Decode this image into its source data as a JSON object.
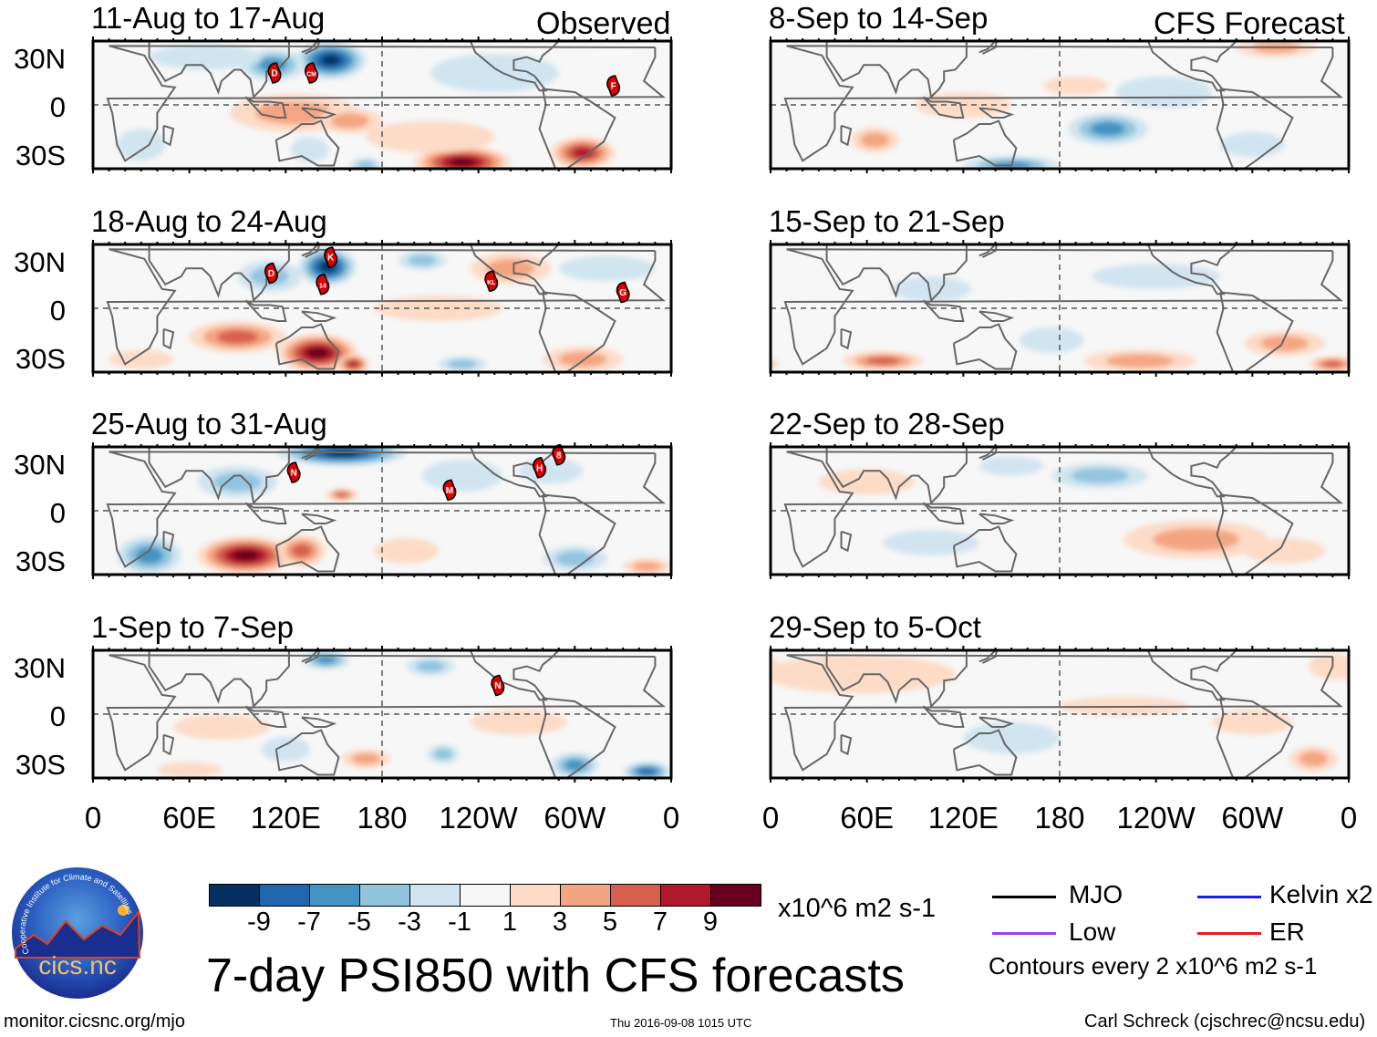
{
  "title": "7-day PSI850 with CFS forecasts",
  "headers": {
    "observed": "Observed",
    "forecast": "CFS Forecast"
  },
  "lat_labels": [
    "30N",
    "0",
    "30S"
  ],
  "lon_labels": [
    "0",
    "60E",
    "120E",
    "180",
    "120W",
    "60W",
    "0"
  ],
  "colorbar": {
    "labels": [
      "-9",
      "-7",
      "-5",
      "-3",
      "-1",
      "1",
      "3",
      "5",
      "7",
      "9"
    ],
    "colors": [
      "#053061",
      "#2166ac",
      "#4393c3",
      "#92c5de",
      "#d1e5f0",
      "#f7f7f7",
      "#fddbc7",
      "#f4a582",
      "#d6604d",
      "#b2182b",
      "#67001f"
    ],
    "units": "x10^6 m2 s-1"
  },
  "legend": {
    "items": [
      {
        "label": "MJO",
        "color": "#000000"
      },
      {
        "label": "Kelvin x2",
        "color": "#1a1aff"
      },
      {
        "label": "Low",
        "color": "#a040e0"
      },
      {
        "label": "ER",
        "color": "#e02020"
      }
    ],
    "contours_note": "Contours every 2 x10^6 m2 s-1"
  },
  "footer": {
    "url": "monitor.cicsnc.org/mjo",
    "timestamp": "Thu 2016-09-08 1015 UTC",
    "author": "Carl Schreck (cjschrec@ncsu.edu)"
  },
  "logo": {
    "name": "cics.nc",
    "ring": "Cooperative Institute for Climate and Satellites"
  },
  "chart_data": {
    "type": "heatmap",
    "variable": "PSI850 anomaly",
    "units": "x10^6 m2 s-1",
    "lat_range": [
      -40,
      40
    ],
    "lon_range": [
      0,
      360
    ],
    "panels": [
      {
        "title": "11-Aug to 17-Aug",
        "kind": "observed",
        "anomalies": [
          {
            "lon": 148,
            "lat": 28,
            "v": -11,
            "rx": 22,
            "ry": 12
          },
          {
            "lon": 112,
            "lat": 25,
            "v": -6,
            "rx": 20,
            "ry": 10
          },
          {
            "lon": 70,
            "lat": 30,
            "v": -3,
            "rx": 35,
            "ry": 8
          },
          {
            "lon": 125,
            "lat": -5,
            "v": 4,
            "rx": 40,
            "ry": 12
          },
          {
            "lon": 160,
            "lat": -10,
            "v": 4,
            "rx": 20,
            "ry": 8
          },
          {
            "lon": 230,
            "lat": -36,
            "v": 10,
            "rx": 30,
            "ry": 10
          },
          {
            "lon": 305,
            "lat": -30,
            "v": 8,
            "rx": 20,
            "ry": 10
          },
          {
            "lon": 210,
            "lat": -20,
            "v": 3,
            "rx": 40,
            "ry": 10
          },
          {
            "lon": 135,
            "lat": -28,
            "v": -3,
            "rx": 12,
            "ry": 8
          },
          {
            "lon": 170,
            "lat": -38,
            "v": -5,
            "rx": 10,
            "ry": 5
          },
          {
            "lon": 250,
            "lat": 20,
            "v": -2,
            "rx": 40,
            "ry": 12
          },
          {
            "lon": 30,
            "lat": -25,
            "v": -3,
            "rx": 15,
            "ry": 10
          }
        ],
        "storms": [
          {
            "lon": 113,
            "lat": 20,
            "label": "D"
          },
          {
            "lon": 136,
            "lat": 20,
            "label": "CM"
          },
          {
            "lon": 324,
            "lat": 12,
            "label": "F"
          }
        ]
      },
      {
        "title": "18-Aug to 24-Aug",
        "kind": "observed",
        "anomalies": [
          {
            "lon": 146,
            "lat": 26,
            "v": -11,
            "rx": 18,
            "ry": 12
          },
          {
            "lon": 110,
            "lat": 20,
            "v": -5,
            "rx": 20,
            "ry": 10
          },
          {
            "lon": 205,
            "lat": 30,
            "v": -5,
            "rx": 15,
            "ry": 6
          },
          {
            "lon": 140,
            "lat": -28,
            "v": 10,
            "rx": 25,
            "ry": 12
          },
          {
            "lon": 90,
            "lat": -18,
            "v": 6,
            "rx": 30,
            "ry": 10
          },
          {
            "lon": 162,
            "lat": -35,
            "v": 9,
            "rx": 10,
            "ry": 6
          },
          {
            "lon": 260,
            "lat": 25,
            "v": 4,
            "rx": 25,
            "ry": 10
          },
          {
            "lon": 30,
            "lat": -32,
            "v": 3,
            "rx": 20,
            "ry": 6
          },
          {
            "lon": 305,
            "lat": -32,
            "v": 5,
            "rx": 25,
            "ry": 8
          },
          {
            "lon": 230,
            "lat": -35,
            "v": -4,
            "rx": 15,
            "ry": 5
          },
          {
            "lon": 215,
            "lat": 0,
            "v": 2,
            "rx": 40,
            "ry": 8
          },
          {
            "lon": 320,
            "lat": 25,
            "v": -2,
            "rx": 30,
            "ry": 8
          }
        ],
        "storms": [
          {
            "lon": 111,
            "lat": 22,
            "label": "D"
          },
          {
            "lon": 148,
            "lat": 32,
            "label": "K"
          },
          {
            "lon": 143,
            "lat": 15,
            "label": "14"
          },
          {
            "lon": 248,
            "lat": 17,
            "label": "KL"
          },
          {
            "lon": 330,
            "lat": 10,
            "label": "G"
          }
        ]
      },
      {
        "title": "25-Aug to 31-Aug",
        "kind": "observed",
        "anomalies": [
          {
            "lon": 155,
            "lat": 36,
            "v": -11,
            "rx": 40,
            "ry": 8
          },
          {
            "lon": 90,
            "lat": 18,
            "v": -4,
            "rx": 25,
            "ry": 10
          },
          {
            "lon": 35,
            "lat": -28,
            "v": -7,
            "rx": 20,
            "ry": 12
          },
          {
            "lon": 95,
            "lat": -28,
            "v": 10,
            "rx": 30,
            "ry": 12
          },
          {
            "lon": 130,
            "lat": -25,
            "v": 6,
            "rx": 15,
            "ry": 10
          },
          {
            "lon": 155,
            "lat": 10,
            "v": 6,
            "rx": 10,
            "ry": 4
          },
          {
            "lon": 230,
            "lat": 22,
            "v": -3,
            "rx": 25,
            "ry": 10
          },
          {
            "lon": 300,
            "lat": -30,
            "v": -4,
            "rx": 20,
            "ry": 8
          },
          {
            "lon": 345,
            "lat": -35,
            "v": 5,
            "rx": 15,
            "ry": 5
          },
          {
            "lon": 195,
            "lat": -25,
            "v": 3,
            "rx": 20,
            "ry": 8
          },
          {
            "lon": 285,
            "lat": 25,
            "v": -3,
            "rx": 20,
            "ry": 8
          }
        ],
        "storms": [
          {
            "lon": 125,
            "lat": 24,
            "label": "N"
          },
          {
            "lon": 222,
            "lat": 13,
            "label": "M"
          },
          {
            "lon": 278,
            "lat": 27,
            "label": "H"
          },
          {
            "lon": 290,
            "lat": 35,
            "label": "8"
          }
        ]
      },
      {
        "title": "1-Sep to 7-Sep",
        "kind": "observed",
        "anomalies": [
          {
            "lon": 145,
            "lat": 34,
            "v": -6,
            "rx": 15,
            "ry": 6
          },
          {
            "lon": 210,
            "lat": 30,
            "v": -5,
            "rx": 15,
            "ry": 6
          },
          {
            "lon": 265,
            "lat": -5,
            "v": 3,
            "rx": 30,
            "ry": 8
          },
          {
            "lon": 300,
            "lat": -32,
            "v": -7,
            "rx": 15,
            "ry": 8
          },
          {
            "lon": 345,
            "lat": -36,
            "v": -9,
            "rx": 15,
            "ry": 6
          },
          {
            "lon": 218,
            "lat": -25,
            "v": -5,
            "rx": 10,
            "ry": 6
          },
          {
            "lon": 80,
            "lat": -8,
            "v": 2,
            "rx": 30,
            "ry": 8
          },
          {
            "lon": 120,
            "lat": -22,
            "v": -3,
            "rx": 15,
            "ry": 8
          },
          {
            "lon": 60,
            "lat": -35,
            "v": 3,
            "rx": 20,
            "ry": 5
          },
          {
            "lon": 170,
            "lat": -28,
            "v": 4,
            "rx": 15,
            "ry": 6
          }
        ],
        "storms": [
          {
            "lon": 252,
            "lat": 18,
            "label": "N"
          }
        ]
      },
      {
        "title": "8-Sep to 14-Sep",
        "kind": "forecast",
        "anomalies": [
          {
            "lon": 315,
            "lat": 36,
            "v": 5,
            "rx": 25,
            "ry": 6
          },
          {
            "lon": 210,
            "lat": -15,
            "v": -7,
            "rx": 25,
            "ry": 10
          },
          {
            "lon": 150,
            "lat": -38,
            "v": -6,
            "rx": 30,
            "ry": 6
          },
          {
            "lon": 65,
            "lat": -22,
            "v": 4,
            "rx": 15,
            "ry": 8
          },
          {
            "lon": 245,
            "lat": 8,
            "v": -3,
            "rx": 30,
            "ry": 10
          },
          {
            "lon": 190,
            "lat": 12,
            "v": 2,
            "rx": 20,
            "ry": 6
          },
          {
            "lon": 120,
            "lat": 0,
            "v": 3,
            "rx": 30,
            "ry": 8
          },
          {
            "lon": 300,
            "lat": -25,
            "v": -3,
            "rx": 20,
            "ry": 8
          }
        ],
        "storms": []
      },
      {
        "title": "15-Sep to 21-Sep",
        "kind": "forecast",
        "anomalies": [
          {
            "lon": 70,
            "lat": -33,
            "v": 6,
            "rx": 25,
            "ry": 6
          },
          {
            "lon": 230,
            "lat": -33,
            "v": 5,
            "rx": 35,
            "ry": 7
          },
          {
            "lon": 320,
            "lat": -22,
            "v": 4,
            "rx": 25,
            "ry": 8
          },
          {
            "lon": 350,
            "lat": -35,
            "v": 7,
            "rx": 15,
            "ry": 5
          },
          {
            "lon": 100,
            "lat": 12,
            "v": -3,
            "rx": 25,
            "ry": 8
          },
          {
            "lon": 240,
            "lat": 20,
            "v": -3,
            "rx": 40,
            "ry": 8
          },
          {
            "lon": 175,
            "lat": -20,
            "v": -3,
            "rx": 20,
            "ry": 8
          }
        ],
        "storms": []
      },
      {
        "title": "22-Sep to 28-Sep",
        "kind": "forecast",
        "anomalies": [
          {
            "lon": 205,
            "lat": 22,
            "v": -5,
            "rx": 30,
            "ry": 8
          },
          {
            "lon": 265,
            "lat": -18,
            "v": 5,
            "rx": 45,
            "ry": 12
          },
          {
            "lon": 150,
            "lat": 28,
            "v": -3,
            "rx": 20,
            "ry": 6
          },
          {
            "lon": 60,
            "lat": 18,
            "v": 2,
            "rx": 30,
            "ry": 8
          },
          {
            "lon": 320,
            "lat": -25,
            "v": 2,
            "rx": 25,
            "ry": 8
          },
          {
            "lon": 100,
            "lat": -20,
            "v": -2,
            "rx": 30,
            "ry": 8
          }
        ],
        "storms": []
      },
      {
        "title": "29-Sep to 5-Oct",
        "kind": "forecast",
        "anomalies": [
          {
            "lon": 55,
            "lat": 25,
            "v": 3,
            "rx": 60,
            "ry": 12
          },
          {
            "lon": 220,
            "lat": 5,
            "v": 2,
            "rx": 40,
            "ry": 6
          },
          {
            "lon": 300,
            "lat": -5,
            "v": 2,
            "rx": 25,
            "ry": 8
          },
          {
            "lon": 338,
            "lat": -28,
            "v": 4,
            "rx": 15,
            "ry": 8
          },
          {
            "lon": 150,
            "lat": -15,
            "v": -2,
            "rx": 30,
            "ry": 10
          },
          {
            "lon": 350,
            "lat": 30,
            "v": 2,
            "rx": 15,
            "ry": 8
          }
        ],
        "storms": []
      }
    ]
  }
}
